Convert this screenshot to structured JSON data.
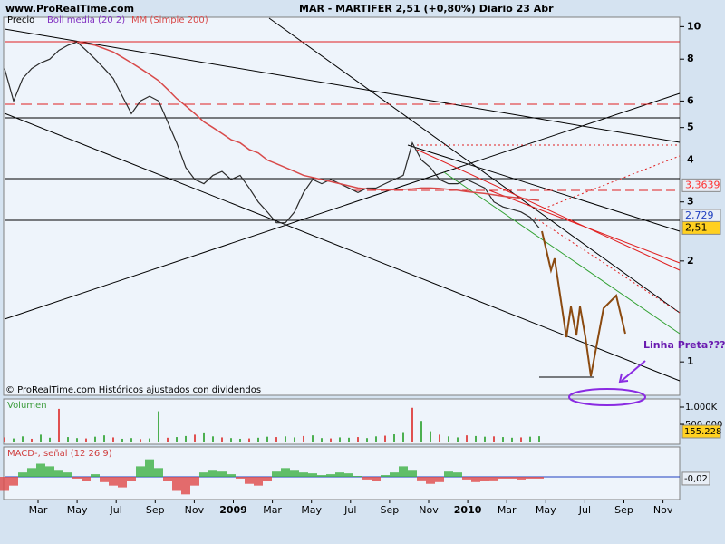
{
  "header": {
    "site": "www.ProRealTime.com",
    "title": "MAR - MARTIFER    2,51 (+0,80%)   Diario  23 Abr"
  },
  "footer": "© ProRealTime.com Históricos ajustados con dividendos",
  "annotation": "Linha Preta????",
  "x_axis": {
    "labels": [
      "Mar",
      "May",
      "Jul",
      "Sep",
      "Nov",
      "2009",
      "Mar",
      "May",
      "Jul",
      "Sep",
      "Nov",
      "2010",
      "Mar",
      "May",
      "Jul",
      "Sep",
      "Nov"
    ]
  },
  "chart_data": [
    {
      "type": "line",
      "log_scale": true,
      "ylim": [
        0.8,
        10.6
      ],
      "yticks": [
        1,
        2,
        3,
        4,
        5,
        6,
        8,
        10
      ],
      "legend_extra": "Boll media (20 2)",
      "series": [
        {
          "name": "Precio",
          "color": "#2a2a2a",
          "values": [
            7.5,
            6,
            7,
            7.5,
            7.8,
            8,
            8.5,
            8.8,
            9,
            8.5,
            8,
            7.5,
            7,
            6.2,
            5.5,
            6,
            6.2,
            6,
            5.2,
            4.5,
            3.8,
            3.5,
            3.4,
            3.6,
            3.7,
            3.5,
            3.6,
            3.3,
            3.0,
            2.8,
            2.6,
            2.6,
            2.8,
            3.2,
            3.5,
            3.4,
            3.5,
            3.4,
            3.3,
            3.2,
            3.3,
            3.3,
            3.4,
            3.5,
            3.6,
            4.5,
            4.0,
            3.8,
            3.5,
            3.4,
            3.4,
            3.5,
            3.4,
            3.3,
            3.0,
            2.9,
            2.85,
            2.8,
            2.7,
            2.51
          ]
        },
        {
          "name": "MM (Simple 200)",
          "color": "#d84a4a",
          "values": [
            null,
            null,
            null,
            null,
            null,
            null,
            null,
            null,
            9.0,
            8.9,
            8.8,
            8.6,
            8.4,
            8.1,
            7.8,
            7.5,
            7.2,
            6.9,
            6.5,
            6.1,
            5.8,
            5.5,
            5.2,
            5.0,
            4.8,
            4.6,
            4.5,
            4.3,
            4.2,
            4.0,
            3.9,
            3.8,
            3.7,
            3.6,
            3.55,
            3.5,
            3.45,
            3.4,
            3.35,
            3.3,
            3.28,
            3.27,
            3.26,
            3.26,
            3.27,
            3.28,
            3.3,
            3.3,
            3.29,
            3.27,
            3.25,
            3.22,
            3.2,
            3.18,
            3.15,
            3.12,
            3.1,
            3.08,
            3.05,
            3.03
          ]
        }
      ],
      "levels": [
        {
          "value": 3.3639,
          "label": "3,3639",
          "color": "#ff3030",
          "box": "#e8eef6"
        },
        {
          "value": 2.729,
          "label": "2,729",
          "color": "#2040c0",
          "box": "#e8eef6"
        },
        {
          "value": 2.51,
          "label": "2,51",
          "color": "#000000",
          "box": "#ffd020"
        }
      ]
    },
    {
      "type": "bar",
      "title": "Volumen",
      "color": "#4caf50",
      "ylim": [
        0,
        1000000
      ],
      "yticks": [
        {
          "value": 1000000,
          "label": "1.000K"
        },
        {
          "value": 500000,
          "label": "500.000"
        }
      ],
      "values": [
        120000,
        90000,
        150000,
        80000,
        200000,
        110000,
        950000,
        130000,
        100000,
        90000,
        140000,
        180000,
        120000,
        80000,
        100000,
        70000,
        90000,
        880000,
        110000,
        130000,
        160000,
        200000,
        240000,
        150000,
        120000,
        100000,
        80000,
        90000,
        110000,
        140000,
        130000,
        150000,
        120000,
        160000,
        180000,
        100000,
        90000,
        120000,
        110000,
        130000,
        100000,
        150000,
        170000,
        210000,
        250000,
        980000,
        600000,
        300000,
        200000,
        150000,
        120000,
        180000,
        160000,
        140000,
        150000,
        130000,
        110000,
        120000,
        140000,
        155228
      ],
      "last": {
        "value": 155228,
        "label": "155.228",
        "box": "#ffd020"
      }
    },
    {
      "type": "histogram-bar",
      "title": "MACD-, señal (12 26 9)",
      "up_color": "#3cb043",
      "down_color": "#e04848",
      "ylim": [
        -0.3,
        0.3
      ],
      "values": [
        -0.15,
        -0.1,
        0.05,
        0.1,
        0.15,
        0.12,
        0.08,
        0.05,
        -0.02,
        -0.05,
        0.03,
        -0.06,
        -0.1,
        -0.12,
        -0.05,
        0.12,
        0.2,
        0.1,
        -0.05,
        -0.15,
        -0.2,
        -0.1,
        0.05,
        0.08,
        0.06,
        0.03,
        -0.02,
        -0.08,
        -0.1,
        -0.05,
        0.06,
        0.1,
        0.08,
        0.05,
        0.04,
        0.02,
        0.03,
        0.05,
        0.04,
        0.01,
        -0.03,
        -0.05,
        0.02,
        0.05,
        0.12,
        0.08,
        -0.04,
        -0.08,
        -0.06,
        0.06,
        0.05,
        -0.03,
        -0.06,
        -0.05,
        -0.04,
        -0.02,
        -0.02,
        -0.03,
        -0.02,
        -0.02
      ],
      "last": {
        "value": -0.02,
        "label": "-0,02",
        "box": "#e8eef6"
      }
    }
  ]
}
